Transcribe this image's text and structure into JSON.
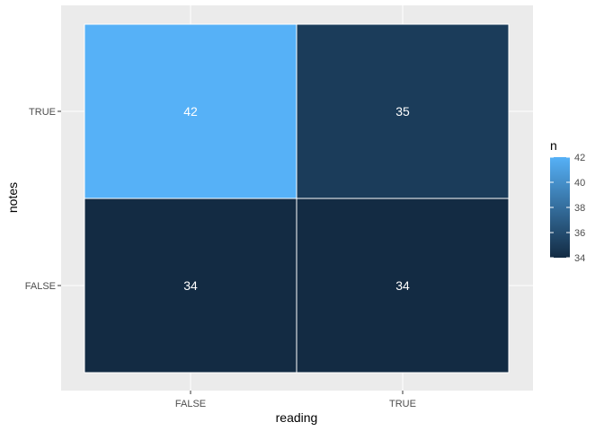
{
  "chart_data": {
    "type": "heatmap",
    "title": "",
    "xlabel": "reading",
    "ylabel": "notes",
    "x_categories": [
      "FALSE",
      "TRUE"
    ],
    "y_categories": [
      "FALSE",
      "TRUE"
    ],
    "cells": [
      {
        "x": "FALSE",
        "y": "TRUE",
        "value": 42
      },
      {
        "x": "TRUE",
        "y": "TRUE",
        "value": 35
      },
      {
        "x": "FALSE",
        "y": "FALSE",
        "value": 34
      },
      {
        "x": "TRUE",
        "y": "FALSE",
        "value": 34
      }
    ],
    "legend": {
      "title": "n",
      "placement": "right",
      "min": 34,
      "max": 42,
      "ticks": [
        34,
        36,
        38,
        40,
        42
      ],
      "low_color": "#132B43",
      "high_color": "#56B1F7"
    },
    "grid": true,
    "panel_background": "#ebebeb",
    "gridline_color": "#ffffff"
  }
}
